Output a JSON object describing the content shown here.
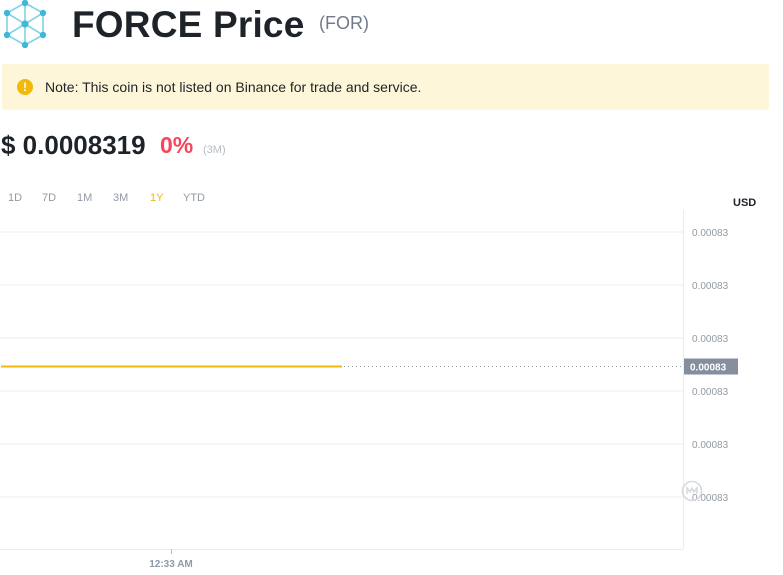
{
  "header": {
    "title": "FORCE Price",
    "symbol": "(FOR)",
    "logo_icon": "force-network-logo-icon"
  },
  "note": {
    "icon": "exclamation-circle-icon",
    "text": "Note: This coin is not listed on Binance for trade and service."
  },
  "price": {
    "value": "$ 0.0008319",
    "change": "0%",
    "period": "(3M)"
  },
  "ranges": {
    "options": [
      "1D",
      "7D",
      "1M",
      "3M",
      "1Y",
      "YTD"
    ],
    "selected": "1Y"
  },
  "colors": {
    "accent": "#f0b90b",
    "negative": "#f6465d",
    "grid": "#eaecef",
    "muted": "#b7bdc6",
    "current_label_bg": "#848e9c"
  },
  "chart_data": {
    "type": "line",
    "currency_label": "USD",
    "y_tick_labels": [
      "0.00083",
      "0.00083",
      "0.00083",
      "0.00083",
      "0.00083",
      "0.00083"
    ],
    "current_value_label": "0.00083",
    "x_tick_labels": [
      "12:33 AM"
    ],
    "series": [
      {
        "values": [
          0.0008319,
          0.0008319,
          0.0008319,
          0.0008319,
          0.0008319,
          0.0008319,
          0.0008319,
          0.0008319,
          0.0008319,
          0.0008319,
          0.0008319,
          0.0008319,
          0.0008319,
          0.0008319,
          0.0008319,
          0.0008319,
          0.0008319,
          0.0008319,
          0.0008319,
          0.0008319,
          0.0008319,
          0.0008319,
          0.0008319,
          0.0008319,
          0.0008319
        ]
      }
    ],
    "ylim": [
      0.00083185,
      0.00083195
    ],
    "grid": true,
    "watermark_icon": "coinmarketcap-watermark-icon"
  }
}
